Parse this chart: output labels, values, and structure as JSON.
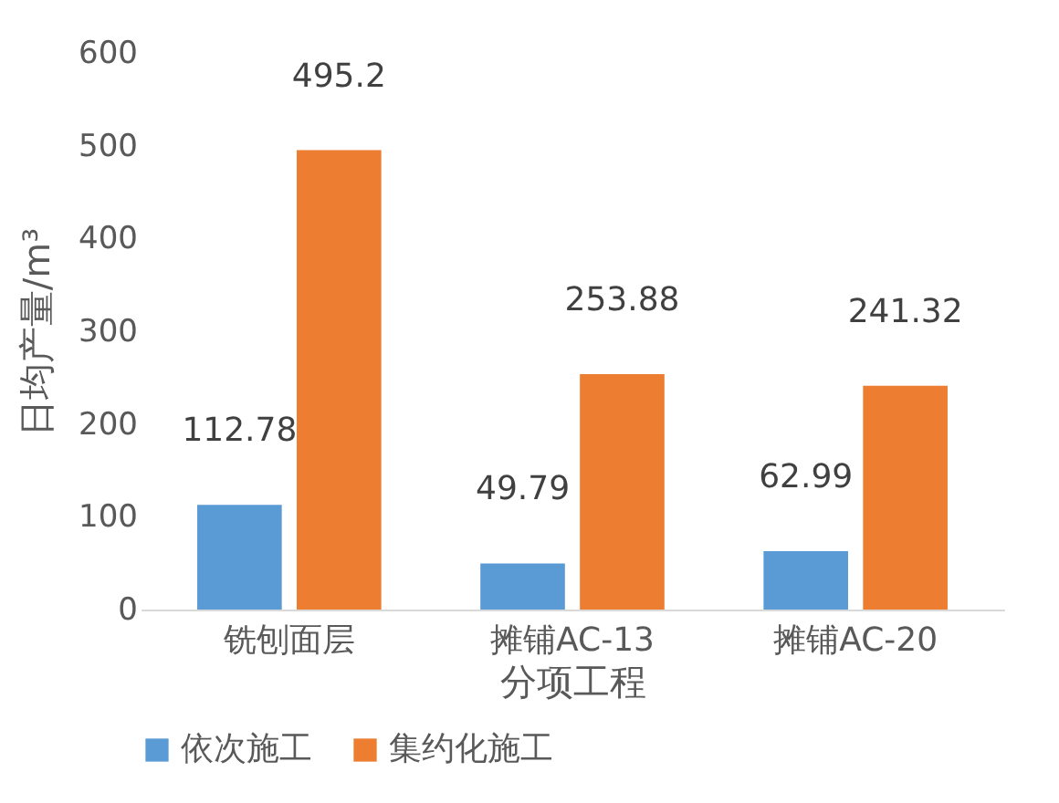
{
  "chart_data": {
    "type": "bar",
    "categories": [
      "铣刨面层",
      "摊铺AC-13",
      "摊铺AC-20"
    ],
    "series": [
      {
        "name": "依次施工",
        "color": "#5b9bd5",
        "values": [
          112.78,
          49.79,
          62.99
        ]
      },
      {
        "name": "集约化施工",
        "color": "#ed7d31",
        "values": [
          495.2,
          253.88,
          241.32
        ]
      }
    ],
    "xlabel": "分项工程",
    "ylabel": "日均产量/m³",
    "ylim": [
      0,
      600
    ],
    "yticks": [
      0,
      100,
      200,
      300,
      400,
      500,
      600
    ],
    "grid": false,
    "legend": "bottom",
    "data_labels": true
  }
}
